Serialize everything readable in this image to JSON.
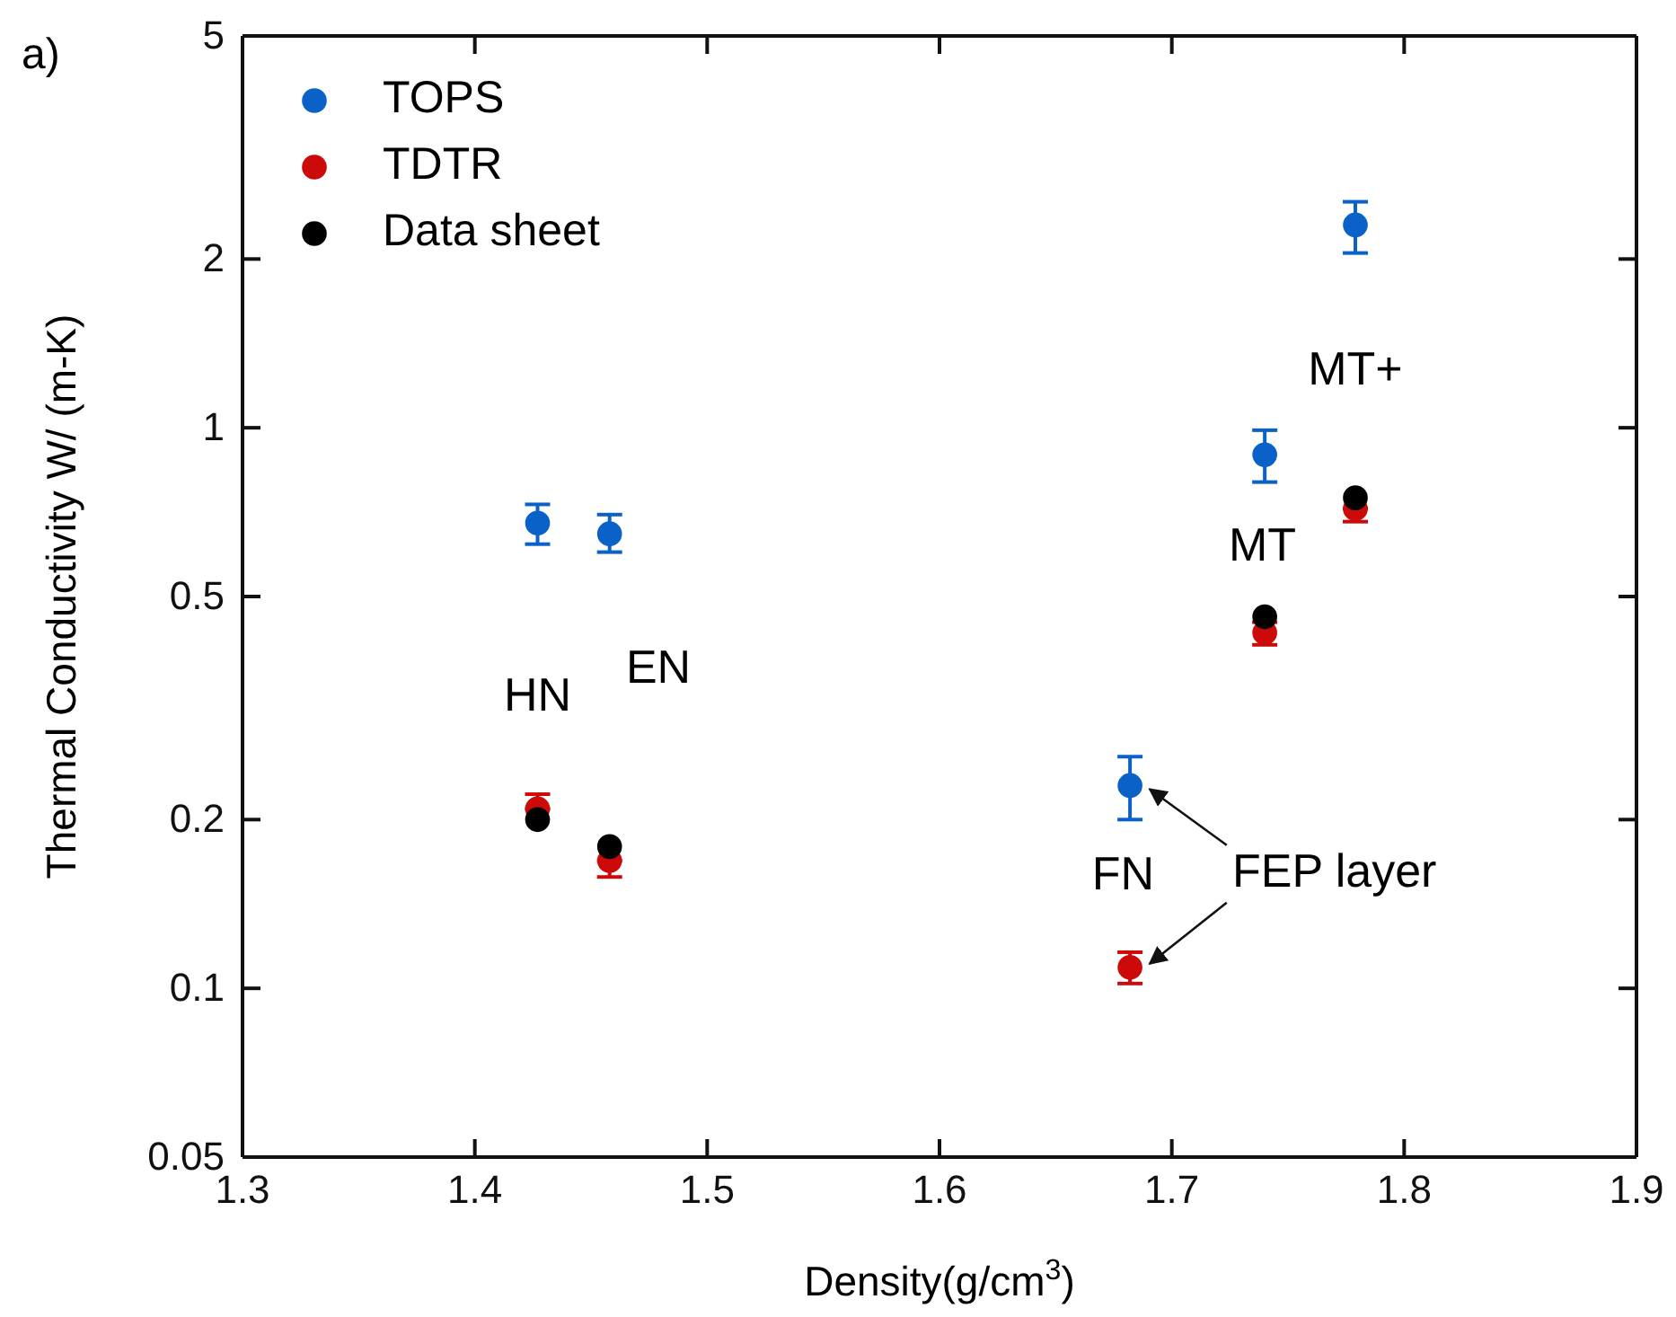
{
  "chart_data": {
    "type": "scatter",
    "xlabel": "Density(g/cm$^{3}$)",
    "ylabel": "Thermal Conductivity W/ (m-K)",
    "xlim": [
      1.3,
      1.9
    ],
    "xticks": [
      1.3,
      1.4,
      1.5,
      1.6,
      1.7,
      1.8,
      1.9
    ],
    "ylim": [
      0.05,
      5
    ],
    "yticks": [
      0.05,
      0.1,
      0.2,
      0.5,
      1,
      2,
      5
    ],
    "log": "y",
    "grid": false,
    "legend": "top left",
    "marker": "circle",
    "x": [
      1.427,
      1.458,
      1.682,
      1.74,
      1.779
    ],
    "series": [
      {
        "name": "TOPS",
        "color": "#0a62c9",
        "values": [
          0.676,
          0.647,
          0.23,
          0.895,
          2.3
        ],
        "errors": [
          [
            0.62,
            0.73
          ],
          [
            0.6,
            0.7
          ],
          [
            0.2,
            0.259
          ],
          [
            0.8,
            0.99
          ],
          [
            2.05,
            2.53
          ]
        ]
      },
      {
        "name": "TDTR",
        "color": "#cc0a0a",
        "values": [
          0.209,
          0.169,
          0.109,
          0.431,
          0.717
        ],
        "errors": [
          [
            0.209,
            0.222
          ],
          [
            0.158,
            0.169
          ],
          [
            0.102,
            0.116
          ],
          [
            0.41,
            0.45
          ],
          [
            0.68,
            0.717
          ]
        ]
      },
      {
        "name": "Data sheet",
        "color": "#000000",
        "values": [
          0.2,
          0.179,
          null,
          0.46,
          0.75
        ]
      }
    ],
    "annotations": [
      "a)",
      "HN",
      "EN",
      "FN",
      "MT",
      "MT+",
      "FEP layer"
    ]
  }
}
